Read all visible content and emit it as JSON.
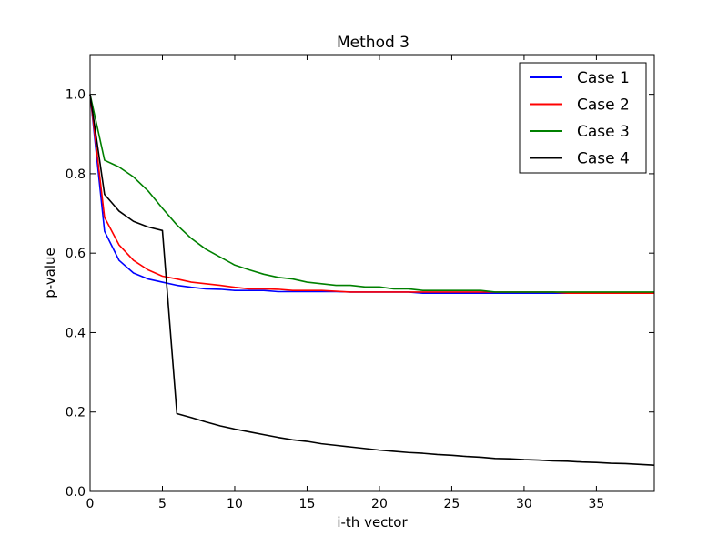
{
  "chart_data": {
    "type": "line",
    "title": "Method 3",
    "xlabel": "i-th vector",
    "ylabel": "p-value",
    "xlim": [
      0,
      39
    ],
    "ylim": [
      0.0,
      1.1
    ],
    "xticks": [
      0,
      5,
      10,
      15,
      20,
      25,
      30,
      35
    ],
    "xtick_labels": [
      "0",
      "5",
      "10",
      "15",
      "20",
      "25",
      "30",
      "35"
    ],
    "yticks": [
      0.0,
      0.2,
      0.4,
      0.6,
      0.8,
      1.0
    ],
    "ytick_labels": [
      "0.0",
      "0.2",
      "0.4",
      "0.6",
      "0.8",
      "1.0"
    ],
    "grid": false,
    "legend_position": "top-right",
    "x": [
      0,
      1,
      2,
      3,
      4,
      5,
      6,
      7,
      8,
      9,
      10,
      11,
      12,
      13,
      14,
      15,
      16,
      17,
      18,
      19,
      20,
      21,
      22,
      23,
      24,
      25,
      26,
      27,
      28,
      29,
      30,
      31,
      32,
      33,
      34,
      35,
      36,
      37,
      38,
      39
    ],
    "series": [
      {
        "name": "Case 1",
        "color": "#0000ff",
        "values": [
          1.0,
          0.655,
          0.582,
          0.55,
          0.535,
          0.527,
          0.519,
          0.514,
          0.51,
          0.509,
          0.506,
          0.506,
          0.506,
          0.503,
          0.503,
          0.503,
          0.503,
          0.503,
          0.502,
          0.502,
          0.502,
          0.502,
          0.502,
          0.499,
          0.499,
          0.499,
          0.499,
          0.499,
          0.499,
          0.499,
          0.499,
          0.499,
          0.499,
          0.499,
          0.499,
          0.499,
          0.499,
          0.499,
          0.499,
          0.499
        ]
      },
      {
        "name": "Case 2",
        "color": "#ff0000",
        "values": [
          1.0,
          0.69,
          0.621,
          0.582,
          0.558,
          0.542,
          0.535,
          0.527,
          0.523,
          0.519,
          0.514,
          0.51,
          0.51,
          0.509,
          0.506,
          0.506,
          0.506,
          0.504,
          0.502,
          0.502,
          0.502,
          0.502,
          0.502,
          0.502,
          0.502,
          0.502,
          0.502,
          0.502,
          0.502,
          0.502,
          0.502,
          0.502,
          0.502,
          0.499,
          0.499,
          0.499,
          0.499,
          0.499,
          0.499,
          0.499
        ]
      },
      {
        "name": "Case 3",
        "color": "#008000",
        "values": [
          1.0,
          0.834,
          0.817,
          0.792,
          0.757,
          0.713,
          0.671,
          0.637,
          0.61,
          0.59,
          0.57,
          0.558,
          0.547,
          0.539,
          0.535,
          0.527,
          0.523,
          0.519,
          0.519,
          0.515,
          0.515,
          0.51,
          0.51,
          0.506,
          0.506,
          0.506,
          0.506,
          0.506,
          0.502,
          0.502,
          0.502,
          0.502,
          0.502,
          0.502,
          0.502,
          0.502,
          0.502,
          0.502,
          0.502,
          0.502
        ]
      },
      {
        "name": "Case 4",
        "color": "#000000",
        "values": [
          1.0,
          0.748,
          0.706,
          0.68,
          0.666,
          0.657,
          0.196,
          0.186,
          0.175,
          0.165,
          0.157,
          0.15,
          0.143,
          0.136,
          0.13,
          0.126,
          0.12,
          0.116,
          0.112,
          0.108,
          0.104,
          0.101,
          0.098,
          0.096,
          0.093,
          0.091,
          0.088,
          0.086,
          0.083,
          0.082,
          0.08,
          0.079,
          0.077,
          0.076,
          0.074,
          0.073,
          0.071,
          0.07,
          0.068,
          0.066
        ]
      }
    ]
  }
}
